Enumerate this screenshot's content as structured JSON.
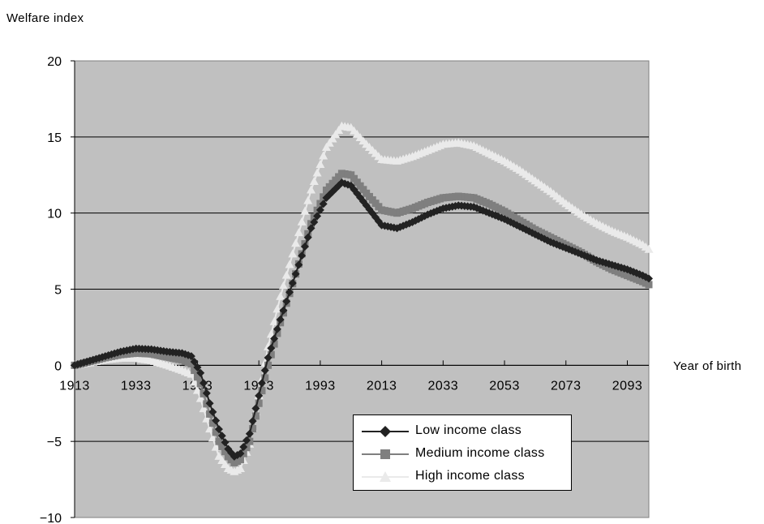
{
  "chart_data": {
    "type": "line",
    "ylabel": "Welfare index",
    "xlabel": "Year of birth",
    "ylim": [
      -10,
      20
    ],
    "xlim": [
      1913,
      2100
    ],
    "yticks": [
      -10,
      -5,
      0,
      5,
      10,
      15,
      20
    ],
    "yticklabels": [
      "−10",
      "−5",
      "0",
      "5",
      "10",
      "15",
      "20"
    ],
    "xticks": [
      1913,
      1933,
      1953,
      1973,
      1993,
      2013,
      2033,
      2053,
      2073,
      2093
    ],
    "xticklabels": [
      "1913",
      "1933",
      "1953",
      "1973",
      "1993",
      "2013",
      "2033",
      "2053",
      "2073",
      "2093"
    ],
    "grid": "horizontal",
    "plot_background": "#c0c0c0",
    "legend_position": "bottom-center",
    "series": [
      {
        "name": "Low income class",
        "color": "#222222",
        "marker": "diamond",
        "points": [
          [
            1913,
            0.0
          ],
          [
            1918,
            0.3
          ],
          [
            1923,
            0.6
          ],
          [
            1928,
            0.9
          ],
          [
            1933,
            1.1
          ],
          [
            1938,
            1.05
          ],
          [
            1943,
            0.9
          ],
          [
            1948,
            0.8
          ],
          [
            1951,
            0.6
          ],
          [
            1954,
            -0.5
          ],
          [
            1957,
            -2.5
          ],
          [
            1960,
            -4.2
          ],
          [
            1963,
            -5.5
          ],
          [
            1965,
            -6.0
          ],
          [
            1967,
            -5.8
          ],
          [
            1970,
            -4.5
          ],
          [
            1973,
            -2.0
          ],
          [
            1976,
            0.5
          ],
          [
            1980,
            3.0
          ],
          [
            1985,
            6.0
          ],
          [
            1990,
            9.0
          ],
          [
            1995,
            11.0
          ],
          [
            2000,
            12.0
          ],
          [
            2003,
            11.8
          ],
          [
            2008,
            10.5
          ],
          [
            2013,
            9.2
          ],
          [
            2018,
            9.0
          ],
          [
            2023,
            9.4
          ],
          [
            2028,
            9.9
          ],
          [
            2033,
            10.3
          ],
          [
            2038,
            10.5
          ],
          [
            2043,
            10.4
          ],
          [
            2048,
            10.0
          ],
          [
            2053,
            9.6
          ],
          [
            2058,
            9.1
          ],
          [
            2063,
            8.6
          ],
          [
            2068,
            8.1
          ],
          [
            2073,
            7.7
          ],
          [
            2078,
            7.3
          ],
          [
            2083,
            6.9
          ],
          [
            2088,
            6.6
          ],
          [
            2093,
            6.3
          ],
          [
            2098,
            5.9
          ],
          [
            2100,
            5.7
          ]
        ]
      },
      {
        "name": "Medium income class",
        "color": "#7f7f7f",
        "marker": "square",
        "points": [
          [
            1913,
            0.0
          ],
          [
            1918,
            0.25
          ],
          [
            1923,
            0.5
          ],
          [
            1928,
            0.7
          ],
          [
            1933,
            0.8
          ],
          [
            1938,
            0.75
          ],
          [
            1943,
            0.55
          ],
          [
            1948,
            0.35
          ],
          [
            1951,
            0.1
          ],
          [
            1954,
            -1.2
          ],
          [
            1957,
            -3.2
          ],
          [
            1960,
            -5.0
          ],
          [
            1963,
            -6.0
          ],
          [
            1965,
            -6.4
          ],
          [
            1967,
            -6.2
          ],
          [
            1970,
            -5.0
          ],
          [
            1973,
            -2.5
          ],
          [
            1976,
            0.0
          ],
          [
            1980,
            2.8
          ],
          [
            1985,
            6.0
          ],
          [
            1990,
            9.3
          ],
          [
            1995,
            11.5
          ],
          [
            2000,
            12.6
          ],
          [
            2003,
            12.5
          ],
          [
            2008,
            11.3
          ],
          [
            2013,
            10.2
          ],
          [
            2018,
            10.0
          ],
          [
            2023,
            10.3
          ],
          [
            2028,
            10.7
          ],
          [
            2033,
            11.0
          ],
          [
            2038,
            11.1
          ],
          [
            2043,
            11.0
          ],
          [
            2048,
            10.6
          ],
          [
            2053,
            10.1
          ],
          [
            2058,
            9.5
          ],
          [
            2063,
            8.9
          ],
          [
            2068,
            8.4
          ],
          [
            2073,
            7.9
          ],
          [
            2078,
            7.4
          ],
          [
            2083,
            6.8
          ],
          [
            2088,
            6.3
          ],
          [
            2093,
            5.9
          ],
          [
            2098,
            5.5
          ],
          [
            2100,
            5.3
          ]
        ]
      },
      {
        "name": "High income class",
        "color": "#eaeaea",
        "marker": "triangle",
        "points": [
          [
            1913,
            0.0
          ],
          [
            1918,
            0.15
          ],
          [
            1923,
            0.35
          ],
          [
            1928,
            0.45
          ],
          [
            1933,
            0.45
          ],
          [
            1938,
            0.3
          ],
          [
            1943,
            0.0
          ],
          [
            1948,
            -0.35
          ],
          [
            1951,
            -0.6
          ],
          [
            1954,
            -2.2
          ],
          [
            1957,
            -4.2
          ],
          [
            1960,
            -6.0
          ],
          [
            1963,
            -6.8
          ],
          [
            1965,
            -7.0
          ],
          [
            1967,
            -6.8
          ],
          [
            1970,
            -5.2
          ],
          [
            1973,
            -2.0
          ],
          [
            1976,
            1.2
          ],
          [
            1980,
            4.5
          ],
          [
            1985,
            8.0
          ],
          [
            1990,
            11.5
          ],
          [
            1995,
            14.3
          ],
          [
            2000,
            15.7
          ],
          [
            2003,
            15.6
          ],
          [
            2008,
            14.5
          ],
          [
            2013,
            13.5
          ],
          [
            2018,
            13.4
          ],
          [
            2023,
            13.7
          ],
          [
            2028,
            14.1
          ],
          [
            2033,
            14.5
          ],
          [
            2038,
            14.6
          ],
          [
            2043,
            14.4
          ],
          [
            2048,
            13.9
          ],
          [
            2053,
            13.4
          ],
          [
            2058,
            12.8
          ],
          [
            2063,
            12.1
          ],
          [
            2068,
            11.4
          ],
          [
            2073,
            10.6
          ],
          [
            2078,
            9.9
          ],
          [
            2083,
            9.3
          ],
          [
            2088,
            8.8
          ],
          [
            2093,
            8.4
          ],
          [
            2098,
            7.9
          ],
          [
            2100,
            7.6
          ]
        ]
      }
    ]
  }
}
